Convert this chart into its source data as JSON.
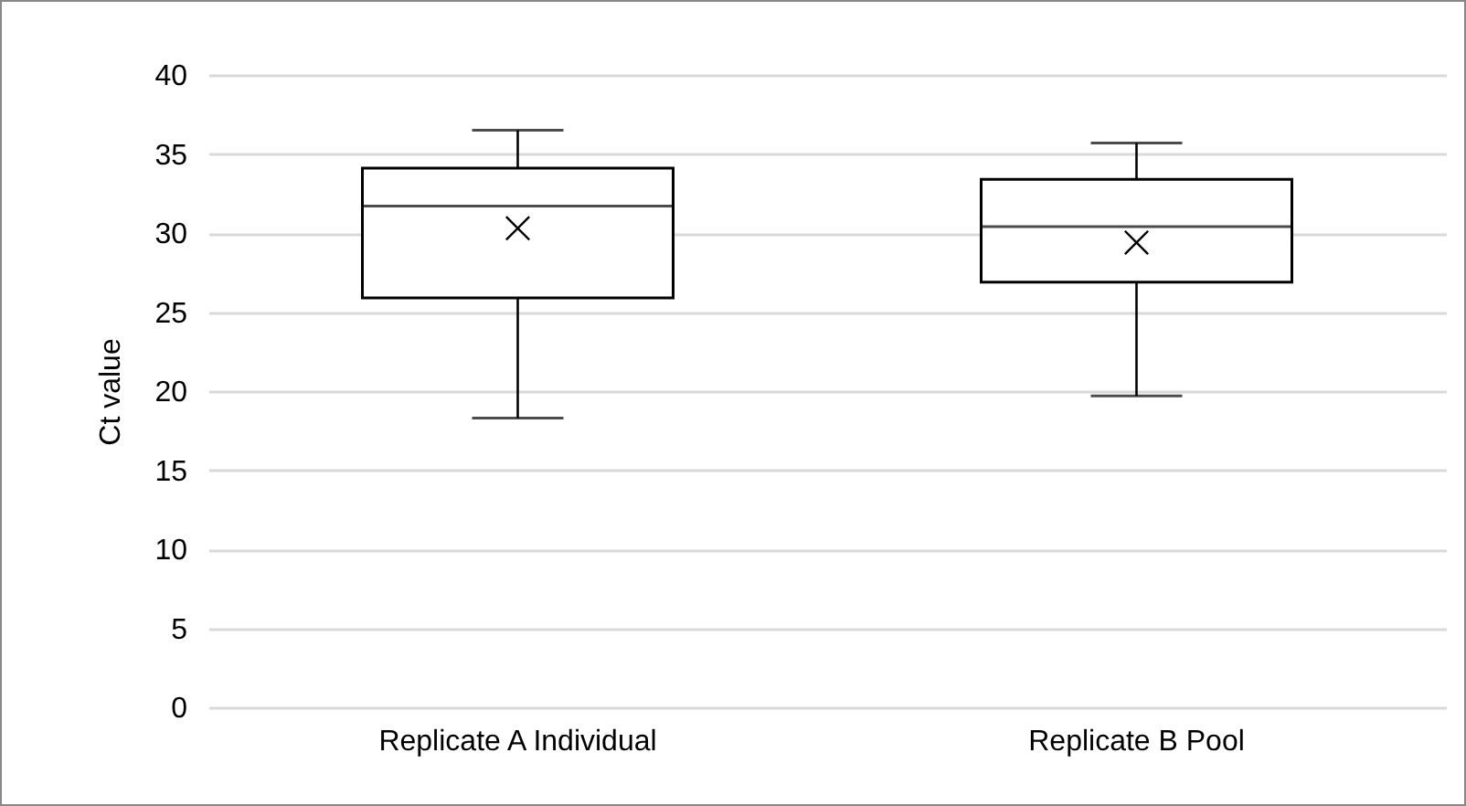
{
  "chart_data": {
    "type": "box",
    "ylabel": "Ct value",
    "categories": [
      "Replicate A Individual",
      "Replicate B Pool"
    ],
    "boxes": [
      {
        "low": 18.3,
        "q1": 25.9,
        "median": 31.7,
        "q3": 34.1,
        "high": 36.5,
        "mean": 30.3
      },
      {
        "low": 19.7,
        "q1": 26.9,
        "median": 30.4,
        "q3": 33.4,
        "high": 35.7,
        "mean": 29.4
      }
    ],
    "ylim": [
      0,
      40
    ],
    "yticks": [
      0,
      5,
      10,
      15,
      20,
      25,
      30,
      35,
      40
    ],
    "grid": "y",
    "marker": "cross"
  }
}
